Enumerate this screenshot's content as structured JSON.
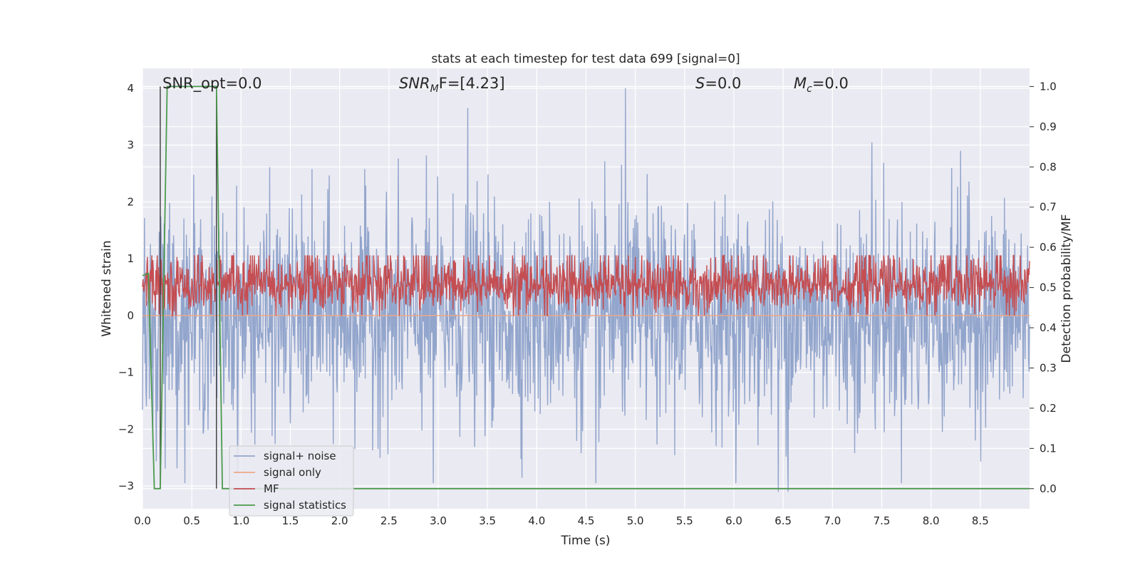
{
  "chart_data": {
    "type": "line",
    "title": "stats at each timestep for test data 699 [signal=0]",
    "xlabel": "Time (s)",
    "ylabel": "Whitened strain",
    "y2label": "Detection probability/MF",
    "xlim": [
      0,
      9.0
    ],
    "ylim": [
      -3.4,
      4.35
    ],
    "y2lim": [
      -0.05,
      1.045
    ],
    "x_ticks": [
      0.0,
      0.5,
      1.0,
      1.5,
      2.0,
      2.5,
      3.0,
      3.5,
      4.0,
      4.5,
      5.0,
      5.5,
      6.0,
      6.5,
      7.0,
      7.5,
      8.0,
      8.5
    ],
    "x_tick_labels": [
      "0.0",
      "0.5",
      "1.0",
      "1.5",
      "2.0",
      "2.5",
      "3.0",
      "3.5",
      "4.0",
      "4.5",
      "5.0",
      "5.5",
      "6.0",
      "6.5",
      "7.0",
      "7.5",
      "8.0",
      "8.5"
    ],
    "y_ticks": [
      -3,
      -2,
      -1,
      0,
      1,
      2,
      3,
      4
    ],
    "y_tick_labels": [
      "−3",
      "−2",
      "−1",
      "0",
      "1",
      "2",
      "3",
      "4"
    ],
    "y2_ticks": [
      0.0,
      0.1,
      0.2,
      0.3,
      0.4,
      0.5,
      0.6,
      0.7,
      0.8,
      0.9,
      1.0
    ],
    "y2_tick_labels": [
      "0.0",
      "0.1",
      "0.2",
      "0.3",
      "0.4",
      "0.5",
      "0.6",
      "0.7",
      "0.8",
      "0.9",
      "1.0"
    ],
    "grid": true,
    "legend_position": "lower-left",
    "annotations": {
      "snr_opt": "SNR_opt=0.0",
      "snr_mf_main": "SNR",
      "snr_mf_sub": "M",
      "snr_mf_rest": "F=[4.23]",
      "s_main": "S",
      "s_rest": "=0.0",
      "mc_main": "M",
      "mc_sub": "c",
      "mc_rest": "=0.0"
    },
    "vertical_markers_x": [
      0.18,
      0.75
    ],
    "series": [
      {
        "name": "signal+ noise",
        "color": "#92a5cc",
        "axis": "left",
        "kind": "noise",
        "sample_count": 1800,
        "approx_range": [
          -3.1,
          4.0
        ],
        "peaks": [
          [
            3.3,
            3.65
          ],
          [
            4.9,
            4.0
          ],
          [
            7.4,
            3.05
          ],
          [
            8.3,
            2.9
          ],
          [
            6.45,
            -3.1
          ],
          [
            6.55,
            -3.1
          ],
          [
            2.95,
            -2.95
          ],
          [
            4.6,
            -2.95
          ]
        ]
      },
      {
        "name": "signal only",
        "color": "#eda887",
        "axis": "left",
        "x": [
          0.0,
          9.0
        ],
        "y": [
          0.0,
          0.0
        ]
      },
      {
        "name": "MF",
        "color": "#c44e52",
        "axis": "right",
        "kind": "noise",
        "sample_count": 1800,
        "approx_range": [
          0.43,
          0.58
        ]
      },
      {
        "name": "signal statistics",
        "color": "#4c9a4e",
        "axis": "right",
        "x": [
          0.0,
          0.06,
          0.12,
          0.18,
          0.25,
          0.75,
          0.81,
          9.0
        ],
        "y": [
          0.53,
          0.535,
          0.0,
          0.0,
          1.0,
          1.0,
          0.0,
          0.0
        ]
      }
    ]
  },
  "colors": {
    "plot_background": "#eaeaf2",
    "grid": "#ffffff",
    "marker_line": "#3a3a3a"
  }
}
